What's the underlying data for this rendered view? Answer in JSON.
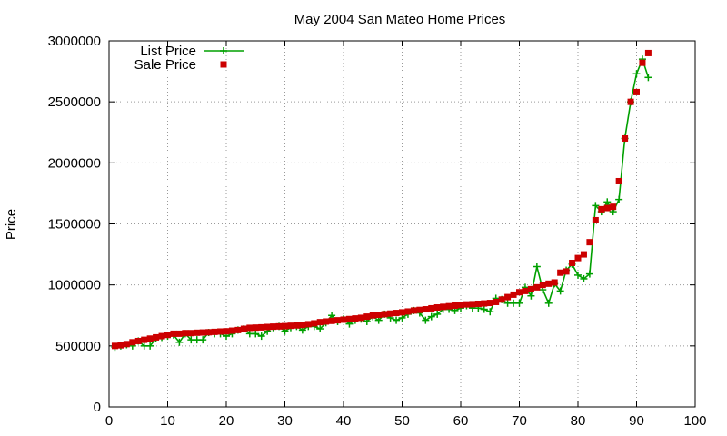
{
  "chart_data": {
    "type": "line",
    "title": "May 2004 San Mateo Home Prices",
    "xlabel": "",
    "ylabel": "Price",
    "xlim": [
      0,
      100
    ],
    "ylim": [
      0,
      3000000
    ],
    "xticks": [
      "0",
      "10",
      "20",
      "30",
      "40",
      "50",
      "60",
      "70",
      "80",
      "90",
      "100"
    ],
    "yticks": [
      "0",
      "500000",
      "1000000",
      "1500000",
      "2000000",
      "2500000",
      "3000000"
    ],
    "grid": true,
    "legend_position": "top-left",
    "series": [
      {
        "name": "List Price",
        "color": "#00a000",
        "style": "line-with-plus-markers",
        "x": [
          1,
          2,
          3,
          4,
          5,
          6,
          7,
          8,
          9,
          10,
          11,
          12,
          13,
          14,
          15,
          16,
          17,
          18,
          19,
          20,
          21,
          22,
          23,
          24,
          25,
          26,
          27,
          28,
          29,
          30,
          31,
          32,
          33,
          34,
          35,
          36,
          37,
          38,
          39,
          40,
          41,
          42,
          43,
          44,
          45,
          46,
          47,
          48,
          49,
          50,
          51,
          52,
          53,
          54,
          55,
          56,
          57,
          58,
          59,
          60,
          61,
          62,
          63,
          64,
          65,
          66,
          67,
          68,
          69,
          70,
          71,
          72,
          73,
          74,
          75,
          76,
          77,
          78,
          79,
          80,
          81,
          82,
          83,
          84,
          85,
          86,
          87,
          88,
          89,
          90,
          91,
          92
        ],
        "y": [
          490000,
          500000,
          510000,
          500000,
          540000,
          500000,
          500000,
          560000,
          570000,
          580000,
          590000,
          530000,
          600000,
          550000,
          550000,
          550000,
          610000,
          600000,
          600000,
          580000,
          600000,
          630000,
          640000,
          600000,
          600000,
          580000,
          620000,
          650000,
          660000,
          620000,
          650000,
          660000,
          630000,
          660000,
          660000,
          640000,
          690000,
          750000,
          700000,
          720000,
          680000,
          710000,
          720000,
          700000,
          740000,
          710000,
          760000,
          730000,
          710000,
          730000,
          760000,
          790000,
          770000,
          710000,
          740000,
          760000,
          800000,
          800000,
          790000,
          810000,
          830000,
          810000,
          810000,
          800000,
          780000,
          890000,
          880000,
          850000,
          850000,
          850000,
          980000,
          910000,
          1150000,
          960000,
          850000,
          1010000,
          950000,
          1120000,
          1170000,
          1080000,
          1050000,
          1090000,
          1650000,
          1600000,
          1680000,
          1600000,
          1700000,
          2200000,
          2500000,
          2730000,
          2850000,
          2700000
        ]
      },
      {
        "name": "Sale Price",
        "color": "#cc0000",
        "style": "square-markers",
        "x": [
          1,
          2,
          3,
          4,
          5,
          6,
          7,
          8,
          9,
          10,
          11,
          12,
          13,
          14,
          15,
          16,
          17,
          18,
          19,
          20,
          21,
          22,
          23,
          24,
          25,
          26,
          27,
          28,
          29,
          30,
          31,
          32,
          33,
          34,
          35,
          36,
          37,
          38,
          39,
          40,
          41,
          42,
          43,
          44,
          45,
          46,
          47,
          48,
          49,
          50,
          51,
          52,
          53,
          54,
          55,
          56,
          57,
          58,
          59,
          60,
          61,
          62,
          63,
          64,
          65,
          66,
          67,
          68,
          69,
          70,
          71,
          72,
          73,
          74,
          75,
          76,
          77,
          78,
          79,
          80,
          81,
          82,
          83,
          84,
          85,
          86,
          87,
          88,
          89,
          90,
          91,
          92
        ],
        "y": [
          500000,
          505000,
          515000,
          530000,
          540000,
          550000,
          560000,
          570000,
          580000,
          590000,
          600000,
          600000,
          605000,
          605000,
          608000,
          610000,
          612000,
          615000,
          618000,
          620000,
          625000,
          630000,
          640000,
          648000,
          650000,
          652000,
          655000,
          658000,
          660000,
          662000,
          665000,
          668000,
          672000,
          678000,
          685000,
          695000,
          700000,
          705000,
          710000,
          715000,
          720000,
          725000,
          730000,
          740000,
          750000,
          755000,
          760000,
          765000,
          770000,
          775000,
          782000,
          790000,
          795000,
          800000,
          808000,
          815000,
          820000,
          825000,
          830000,
          835000,
          840000,
          842000,
          845000,
          848000,
          852000,
          860000,
          880000,
          900000,
          920000,
          940000,
          950000,
          965000,
          980000,
          1000000,
          1010000,
          1020000,
          1100000,
          1110000,
          1180000,
          1220000,
          1250000,
          1350000,
          1530000,
          1620000,
          1630000,
          1640000,
          1850000,
          2200000,
          2500000,
          2580000,
          2820000,
          2900000
        ]
      }
    ]
  }
}
